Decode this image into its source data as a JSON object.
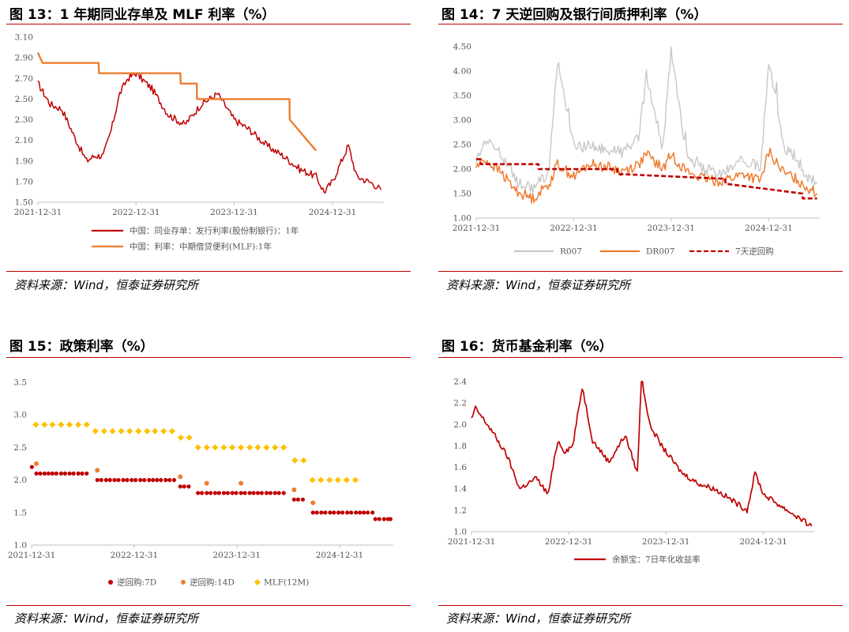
{
  "figures": [
    {
      "id": "fig13",
      "title": "图 13：1 年期同业存单及 MLF 利率（%）",
      "source": "资料来源：Wind，恒泰证券研究所"
    },
    {
      "id": "fig14",
      "title": "图 14：7 天逆回购及银行间质押利率（%）",
      "source": "资料来源：Wind，恒泰证券研究所"
    },
    {
      "id": "fig15",
      "title": "图 15：政策利率（%）",
      "source": "资料来源：Wind，恒泰证券研究所"
    },
    {
      "id": "fig16",
      "title": "图 16：货币基金利率（%）",
      "source": "资料来源：Wind，恒泰证券研究所"
    }
  ],
  "colors": {
    "dark_red": "#c00000",
    "orange": "#ed7d31",
    "gray": "#c8c8c8",
    "gold": "#ffc000",
    "rule": "#c00000"
  },
  "chart_data": [
    {
      "type": "line",
      "x_ticks": [
        "2021-12-31",
        "2022-12-31",
        "2023-12-31",
        "2024-12-31"
      ],
      "ylim": [
        1.5,
        3.1
      ],
      "y_ticks": [
        "3.10",
        "2.90",
        "2.70",
        "2.50",
        "2.30",
        "2.10",
        "1.90",
        "1.70",
        "1.50"
      ],
      "legend_position": "bottom",
      "series": [
        {
          "name": "中国：同业存单：发行利率(股份制银行)：1年",
          "color": "#c00000",
          "x": [
            "2021-12-31",
            "2022-02-15",
            "2022-03-31",
            "2022-05-31",
            "2022-06-30",
            "2022-07-31",
            "2022-08-31",
            "2022-09-30",
            "2022-10-31",
            "2022-11-30",
            "2022-12-31",
            "2023-02-28",
            "2023-04-30",
            "2023-06-30",
            "2023-08-31",
            "2023-10-31",
            "2023-12-31",
            "2024-02-28",
            "2024-04-30",
            "2024-06-30",
            "2024-08-31",
            "2024-10-31",
            "2024-11-30",
            "2024-12-31",
            "2025-02-28",
            "2025-03-31",
            "2025-05-31",
            "2025-06-30"
          ],
          "values": [
            2.65,
            2.45,
            2.4,
            2.05,
            1.9,
            1.95,
            1.95,
            2.2,
            2.55,
            2.7,
            2.75,
            2.6,
            2.35,
            2.25,
            2.45,
            2.55,
            2.3,
            2.2,
            2.05,
            1.95,
            1.82,
            1.75,
            1.6,
            1.7,
            2.05,
            1.75,
            1.68,
            1.62
          ]
        },
        {
          "name": "中国：利率：中期借贷便利(MLF):1年",
          "color": "#ed7d31",
          "x": [
            "2021-12-31",
            "2022-01-17",
            "2022-08-14",
            "2022-08-15",
            "2023-06-14",
            "2023-06-15",
            "2023-08-14",
            "2023-08-15",
            "2024-07-24",
            "2024-07-25",
            "2024-10-31"
          ],
          "values": [
            2.95,
            2.85,
            2.85,
            2.75,
            2.75,
            2.65,
            2.65,
            2.5,
            2.5,
            2.3,
            2.0
          ]
        }
      ]
    },
    {
      "type": "line",
      "x_ticks": [
        "2021-12-31",
        "2022-12-31",
        "2023-12-31",
        "2024-12-31"
      ],
      "ylim": [
        1.0,
        4.5
      ],
      "y_ticks": [
        "4.50",
        "4.00",
        "3.50",
        "3.00",
        "2.50",
        "2.00",
        "1.50",
        "1.00"
      ],
      "legend_position": "bottom",
      "series": [
        {
          "name": "R007",
          "color": "#c8c8c8",
          "x": [
            "2021-12-31",
            "2022-01-31",
            "2022-03-31",
            "2022-05-31",
            "2022-07-31",
            "2022-09-30",
            "2022-10-31",
            "2022-12-31",
            "2023-02-28",
            "2023-04-30",
            "2023-06-30",
            "2023-08-31",
            "2023-09-30",
            "2023-11-30",
            "2023-12-31",
            "2024-02-28",
            "2024-04-30",
            "2024-06-30",
            "2024-08-31",
            "2024-09-30",
            "2024-11-30",
            "2024-12-31",
            "2025-02-28",
            "2025-03-31",
            "2025-05-31",
            "2025-06-30"
          ],
          "values": [
            2.2,
            2.6,
            2.35,
            1.75,
            1.6,
            1.95,
            4.2,
            2.5,
            2.45,
            2.4,
            2.35,
            2.6,
            3.9,
            2.4,
            4.4,
            2.25,
            2.0,
            1.9,
            2.1,
            2.2,
            2.0,
            4.2,
            2.4,
            2.3,
            1.8,
            1.7
          ]
        },
        {
          "name": "DR007",
          "color": "#ed7d31",
          "x": [
            "2021-12-31",
            "2022-01-31",
            "2022-03-31",
            "2022-05-31",
            "2022-07-31",
            "2022-09-30",
            "2022-10-31",
            "2022-12-31",
            "2023-02-28",
            "2023-04-30",
            "2023-06-30",
            "2023-08-31",
            "2023-09-30",
            "2023-11-30",
            "2023-12-31",
            "2024-02-28",
            "2024-04-30",
            "2024-06-30",
            "2024-08-31",
            "2024-09-30",
            "2024-11-30",
            "2024-12-31",
            "2025-02-28",
            "2025-03-31",
            "2025-05-31",
            "2025-06-30"
          ],
          "values": [
            2.05,
            2.2,
            1.95,
            1.55,
            1.4,
            1.7,
            2.1,
            1.85,
            2.1,
            2.05,
            1.95,
            2.1,
            2.3,
            2.0,
            2.3,
            1.95,
            1.8,
            1.75,
            1.85,
            1.9,
            1.75,
            2.35,
            1.9,
            1.85,
            1.6,
            1.5
          ]
        },
        {
          "name": "7天逆回购",
          "color": "#c00000",
          "x": [
            "2021-12-31",
            "2022-01-16",
            "2022-01-17",
            "2022-08-21",
            "2022-08-22",
            "2023-06-12",
            "2023-06-13",
            "2024-07-21",
            "2024-07-22",
            "2025-05-06",
            "2025-05-07",
            "2025-06-30"
          ],
          "values": [
            2.2,
            2.2,
            2.1,
            2.1,
            2.0,
            2.0,
            1.9,
            1.8,
            1.7,
            1.5,
            1.4,
            1.4
          ]
        }
      ]
    },
    {
      "type": "scatter",
      "x_ticks": [
        "2021-12-31",
        "2022-12-31",
        "2023-12-31",
        "2024-12-31"
      ],
      "ylim": [
        1.0,
        3.5
      ],
      "y_ticks": [
        "3.5",
        "3.0",
        "2.5",
        "2.0",
        "1.5",
        "1.0"
      ],
      "legend_position": "bottom",
      "series": [
        {
          "name": "逆回购:7D",
          "color": "#c00000",
          "x": [
            "2022-01-01",
            "2022-01-17",
            "2022-02-15",
            "2022-03-15",
            "2022-04-15",
            "2022-05-15",
            "2022-06-15",
            "2022-07-15",
            "2022-08-22",
            "2022-09-22",
            "2022-10-22",
            "2022-11-22",
            "2022-12-22",
            "2023-01-22",
            "2023-02-22",
            "2023-03-22",
            "2023-04-22",
            "2023-05-22",
            "2023-06-13",
            "2023-07-13",
            "2023-08-15",
            "2023-09-15",
            "2023-10-15",
            "2023-11-15",
            "2023-12-15",
            "2024-01-15",
            "2024-02-15",
            "2024-03-15",
            "2024-04-15",
            "2024-05-15",
            "2024-06-15",
            "2024-07-22",
            "2024-08-22",
            "2024-09-27",
            "2024-10-27",
            "2024-11-27",
            "2024-12-27",
            "2025-01-27",
            "2025-02-27",
            "2025-03-27",
            "2025-04-27",
            "2025-05-07",
            "2025-06-07",
            "2025-06-30"
          ],
          "values": [
            2.2,
            2.1,
            2.1,
            2.1,
            2.1,
            2.1,
            2.1,
            2.1,
            2.0,
            2.0,
            2.0,
            2.0,
            2.0,
            2.0,
            2.0,
            2.0,
            2.0,
            2.0,
            1.9,
            1.9,
            1.8,
            1.8,
            1.8,
            1.8,
            1.8,
            1.8,
            1.8,
            1.8,
            1.8,
            1.8,
            1.8,
            1.7,
            1.7,
            1.5,
            1.5,
            1.5,
            1.5,
            1.5,
            1.5,
            1.5,
            1.5,
            1.4,
            1.4,
            1.4
          ]
        },
        {
          "name": "逆回购:14D",
          "color": "#ed7d31",
          "x": [
            "2022-01-17",
            "2022-08-22",
            "2023-06-13",
            "2023-09-15",
            "2024-01-15",
            "2024-07-22",
            "2024-09-27"
          ],
          "values": [
            2.25,
            2.15,
            2.05,
            1.95,
            1.95,
            1.85,
            1.65
          ]
        },
        {
          "name": "MLF(12M)",
          "color": "#ffc000",
          "x": [
            "2022-01-15",
            "2022-02-15",
            "2022-03-15",
            "2022-04-15",
            "2022-05-15",
            "2022-06-15",
            "2022-07-15",
            "2022-08-15",
            "2022-09-15",
            "2022-10-15",
            "2022-11-15",
            "2022-12-15",
            "2023-01-15",
            "2023-02-15",
            "2023-03-15",
            "2023-04-15",
            "2023-05-15",
            "2023-06-15",
            "2023-07-15",
            "2023-08-15",
            "2023-09-15",
            "2023-10-15",
            "2023-11-15",
            "2023-12-15",
            "2024-01-15",
            "2024-02-15",
            "2024-03-15",
            "2024-04-15",
            "2024-05-15",
            "2024-06-15",
            "2024-07-25",
            "2024-08-25",
            "2024-09-25",
            "2024-10-25",
            "2024-11-25",
            "2024-12-25",
            "2025-01-25",
            "2025-02-25"
          ],
          "values": [
            2.85,
            2.85,
            2.85,
            2.85,
            2.85,
            2.85,
            2.85,
            2.75,
            2.75,
            2.75,
            2.75,
            2.75,
            2.75,
            2.75,
            2.75,
            2.75,
            2.75,
            2.65,
            2.65,
            2.5,
            2.5,
            2.5,
            2.5,
            2.5,
            2.5,
            2.5,
            2.5,
            2.5,
            2.5,
            2.5,
            2.3,
            2.3,
            2.0,
            2.0,
            2.0,
            2.0,
            2.0,
            2.0
          ]
        }
      ]
    },
    {
      "type": "line",
      "x_ticks": [
        "2021-12-31",
        "2022-12-31",
        "2023-12-31",
        "2024-12-31"
      ],
      "ylim": [
        1.0,
        2.4
      ],
      "y_ticks": [
        "2.4",
        "2.2",
        "2.0",
        "1.8",
        "1.6",
        "1.4",
        "1.2",
        "1.0"
      ],
      "legend_position": "bottom",
      "series": [
        {
          "name": "余额宝：7日年化收益率",
          "color": "#c00000",
          "x": [
            "2021-12-31",
            "2022-01-15",
            "2022-03-15",
            "2022-05-15",
            "2022-06-30",
            "2022-08-31",
            "2022-10-15",
            "2022-11-20",
            "2022-12-15",
            "2023-01-15",
            "2023-02-20",
            "2023-03-31",
            "2023-05-31",
            "2023-07-31",
            "2023-09-15",
            "2023-09-30",
            "2023-10-31",
            "2023-12-15",
            "2024-02-28",
            "2024-04-30",
            "2024-06-30",
            "2024-08-31",
            "2024-10-31",
            "2024-11-30",
            "2024-12-31",
            "2025-02-28",
            "2025-04-30",
            "2025-06-30"
          ],
          "values": [
            2.05,
            2.15,
            1.95,
            1.7,
            1.4,
            1.5,
            1.35,
            1.85,
            1.75,
            1.8,
            2.35,
            1.85,
            1.65,
            1.9,
            1.55,
            2.45,
            2.0,
            1.8,
            1.55,
            1.45,
            1.4,
            1.3,
            1.2,
            1.55,
            1.35,
            1.25,
            1.15,
            1.05
          ]
        }
      ]
    }
  ]
}
